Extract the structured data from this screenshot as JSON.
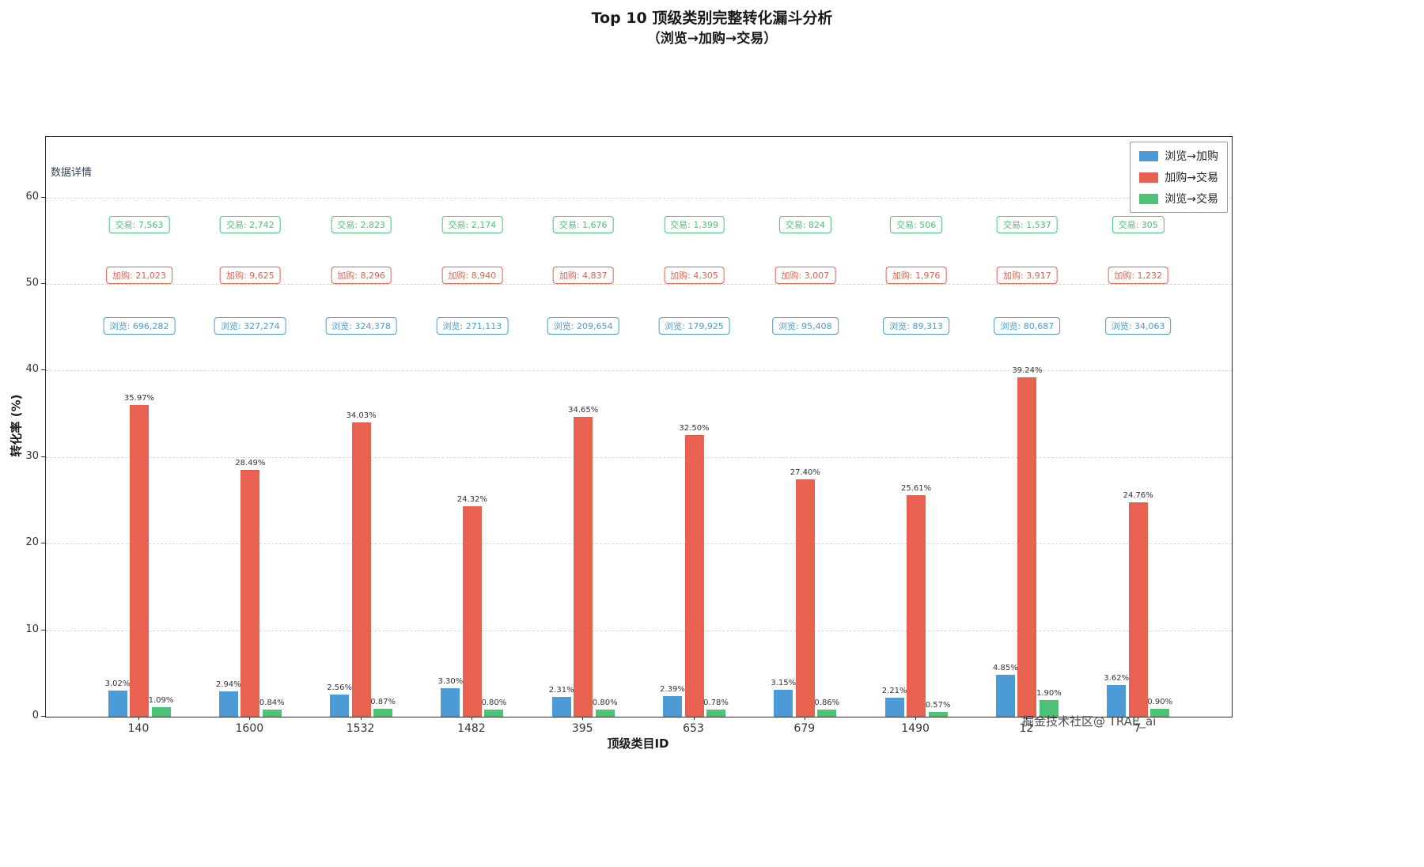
{
  "watermark": "掘金技术社区@ TRAE_ai",
  "chart_data": {
    "type": "bar",
    "title": "Top 10 顶级类别完整转化漏斗分析",
    "subtitle": "（浏览→加购→交易）",
    "xlabel": "顶级类目ID",
    "ylabel": "转化率 (%)",
    "note": "数据详情",
    "grid": "dashed horizontal",
    "legend_position": "upper right",
    "ylim": [
      0,
      67
    ],
    "yticks": [
      0,
      10,
      20,
      30,
      40,
      50,
      60
    ],
    "categories": [
      "140",
      "1600",
      "1532",
      "1482",
      "395",
      "653",
      "679",
      "1490",
      "12",
      "7"
    ],
    "series": [
      {
        "name": "浏览→加购",
        "color": "#4C9BD6",
        "values": [
          3.02,
          2.94,
          2.56,
          3.3,
          2.31,
          2.39,
          3.15,
          2.21,
          4.85,
          3.62
        ]
      },
      {
        "name": "加购→交易",
        "color": "#E96150",
        "values": [
          35.97,
          28.49,
          34.03,
          24.32,
          34.65,
          32.5,
          27.4,
          25.61,
          39.24,
          24.76
        ]
      },
      {
        "name": "浏览→交易",
        "color": "#4CC376",
        "values": [
          1.09,
          0.84,
          0.87,
          0.8,
          0.8,
          0.78,
          0.86,
          0.57,
          1.9,
          0.9
        ]
      }
    ],
    "annotation_rows": [
      {
        "prefix": "交易",
        "color": "#4CC376",
        "values": [
          "7,563",
          "2,742",
          "2,823",
          "2,174",
          "1,676",
          "1,399",
          "824",
          "506",
          "1,537",
          "305"
        ]
      },
      {
        "prefix": "加购",
        "color": "#E96150",
        "values": [
          "21,023",
          "9,625",
          "8,296",
          "8,940",
          "4,837",
          "4,305",
          "3,007",
          "1,976",
          "3,917",
          "1,232"
        ]
      },
      {
        "prefix": "浏览",
        "color": "#4C9BD6",
        "values": [
          "696,282",
          "327,274",
          "324,378",
          "271,113",
          "209,654",
          "179,925",
          "95,408",
          "89,313",
          "80,687",
          "34,063"
        ]
      }
    ]
  }
}
